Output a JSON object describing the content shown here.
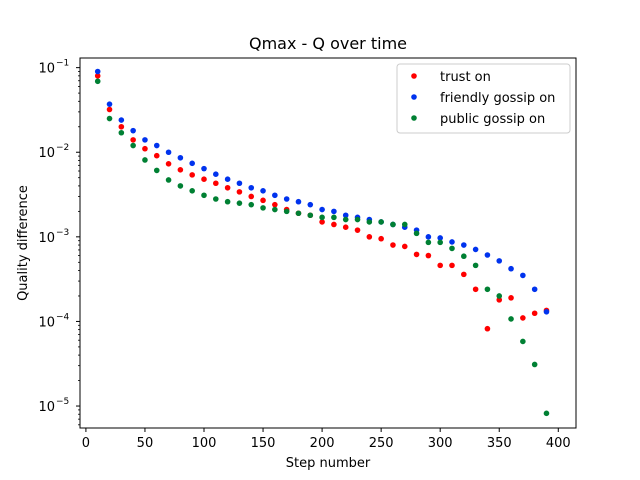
{
  "chart_data": {
    "type": "scatter",
    "title": "Qmax - Q over time",
    "xlabel": "Step number",
    "ylabel": "Quality difference",
    "xlim": [
      -5,
      415
    ],
    "ylim": [
      5.5e-06,
      0.13
    ],
    "yscale": "log",
    "grid": false,
    "legend_position": "top-right",
    "x_ticks": [
      {
        "value": 0,
        "label": "0"
      },
      {
        "value": 50,
        "label": "50"
      },
      {
        "value": 100,
        "label": "100"
      },
      {
        "value": 150,
        "label": "150"
      },
      {
        "value": 200,
        "label": "200"
      },
      {
        "value": 250,
        "label": "250"
      },
      {
        "value": 300,
        "label": "300"
      },
      {
        "value": 350,
        "label": "350"
      },
      {
        "value": 400,
        "label": "400"
      }
    ],
    "y_ticks": [
      {
        "value": 0.1,
        "base": "10",
        "exp": "−1"
      },
      {
        "value": 0.01,
        "base": "10",
        "exp": "−2"
      },
      {
        "value": 0.001,
        "base": "10",
        "exp": "−3"
      },
      {
        "value": 0.0001,
        "base": "10",
        "exp": "−4"
      },
      {
        "value": 1e-05,
        "base": "10",
        "exp": "−5"
      }
    ],
    "x": [
      10,
      20,
      30,
      40,
      50,
      60,
      70,
      80,
      90,
      100,
      110,
      120,
      130,
      140,
      150,
      160,
      170,
      180,
      190,
      200,
      210,
      220,
      230,
      240,
      250,
      260,
      270,
      280,
      290,
      300,
      310,
      320,
      330,
      340,
      350,
      360,
      370,
      380,
      390
    ],
    "series": [
      {
        "name": "trust on",
        "color": "#ff0000",
        "values": [
          0.08,
          0.032,
          0.02,
          0.014,
          0.011,
          0.0091,
          0.0073,
          0.0062,
          0.0054,
          0.0048,
          0.0043,
          0.0038,
          0.0034,
          0.003,
          0.0027,
          0.0024,
          0.0021,
          0.0019,
          0.0018,
          0.0015,
          0.0014,
          0.0013,
          0.0012,
          0.001,
          0.00095,
          0.0008,
          0.00077,
          0.00062,
          0.0006,
          0.00046,
          0.00046,
          0.00036,
          0.00024,
          8.2e-05,
          0.00018,
          0.00019,
          0.00011,
          0.000125,
          0.000135
        ]
      },
      {
        "name": "friendly gossip on",
        "color": "#0033ee",
        "values": [
          0.09,
          0.037,
          0.024,
          0.018,
          0.014,
          0.012,
          0.01,
          0.0086,
          0.0074,
          0.0064,
          0.0055,
          0.0048,
          0.0043,
          0.0038,
          0.0035,
          0.0031,
          0.0028,
          0.0026,
          0.0024,
          0.0021,
          0.002,
          0.0018,
          0.0017,
          0.0016,
          0.0015,
          0.0014,
          0.0013,
          0.0012,
          0.001,
          0.00097,
          0.00087,
          0.0008,
          0.00071,
          0.00061,
          0.00052,
          0.00042,
          0.00035,
          0.00024,
          0.00013
        ]
      },
      {
        "name": "public gossip on",
        "color": "#008033",
        "values": [
          0.069,
          0.025,
          0.017,
          0.012,
          0.0081,
          0.0061,
          0.0047,
          0.004,
          0.0035,
          0.0031,
          0.0028,
          0.0026,
          0.0025,
          0.0024,
          0.0022,
          0.0021,
          0.002,
          0.0019,
          0.0018,
          0.0017,
          0.0017,
          0.0016,
          0.0016,
          0.0015,
          0.0015,
          0.0014,
          0.0014,
          0.0011,
          0.00086,
          0.00086,
          0.00073,
          0.00059,
          0.00046,
          0.00024,
          0.0002,
          0.000107,
          5.8e-05,
          3.1e-05,
          8.2e-06
        ]
      }
    ]
  }
}
